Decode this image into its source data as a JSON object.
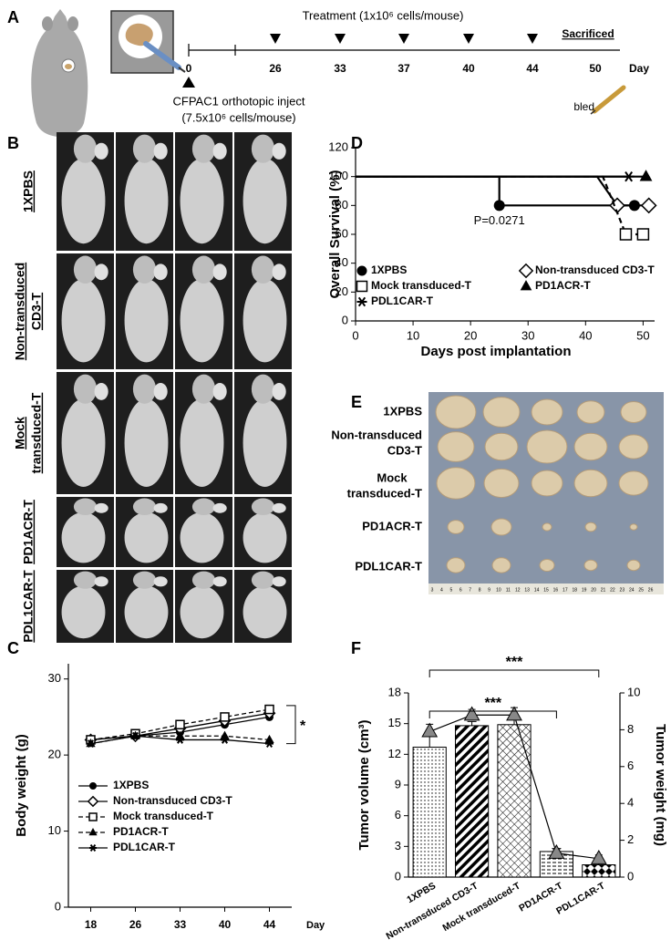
{
  "panel_a": {
    "label": "A",
    "treatment": "Treatment  (1x10⁶ cells/mouse)",
    "days": [
      0,
      26,
      33,
      37,
      40,
      44,
      50
    ],
    "day_label": "Day",
    "sacrificed": "Sacrificed",
    "inject": [
      "CFPAC1 orthotopic inject",
      "(7.5x10⁶ cells/mouse)"
    ],
    "bled": "bled"
  },
  "panel_b": {
    "label": "B",
    "rows": [
      [
        "1XPBS"
      ],
      [
        "Non-transduced",
        "CD3-T"
      ],
      [
        "Mock",
        "transduced-T"
      ],
      [
        "PD1ACR-T"
      ],
      [
        "PDL1CAR-T"
      ]
    ]
  },
  "panel_e": {
    "label": "E",
    "rows": [
      [
        "1XPBS"
      ],
      [
        "Non-transduced",
        "CD3-T"
      ],
      [
        "Mock",
        "transduced-T"
      ],
      [
        "PD1ACR-T"
      ],
      [
        "PDL1CAR-T"
      ]
    ],
    "ruler": [
      3,
      4,
      5,
      6,
      7,
      8,
      9,
      10,
      11,
      12,
      13,
      14,
      15,
      16,
      17,
      18,
      19,
      20,
      21,
      22,
      23,
      24,
      25,
      26
    ]
  },
  "chart_data": [
    {
      "label": "C",
      "type": "line",
      "y_label": "Body weight (g)",
      "x_label": "Day",
      "categories": [
        "18",
        "26",
        "33",
        "40",
        "44"
      ],
      "ylim": [
        0,
        32
      ],
      "yticks": [
        0,
        10,
        20,
        30
      ],
      "annotation": "*",
      "series": [
        {
          "name": "1XPBS",
          "color": "#000000",
          "marker": "circle",
          "dash": false,
          "values": [
            22,
            22.5,
            23,
            24,
            25
          ]
        },
        {
          "name": "Non-transduced  CD3-T",
          "color": "#000000",
          "marker": "diamond-open",
          "dash": false,
          "values": [
            22,
            22.5,
            23.5,
            24.5,
            25.5
          ]
        },
        {
          "name": "Mock transduced-T",
          "color": "#000000",
          "marker": "square-open",
          "dash": true,
          "values": [
            22,
            22.8,
            24,
            25,
            26
          ]
        },
        {
          "name": "PD1ACR-T",
          "color": "#000000",
          "marker": "triangle",
          "dash": true,
          "values": [
            21.5,
            22.5,
            22.5,
            22.5,
            22
          ]
        },
        {
          "name": "PDL1CAR-T",
          "color": "#000000",
          "marker": "asterisk",
          "dash": false,
          "values": [
            21.5,
            22.5,
            22,
            22,
            21.5
          ]
        }
      ]
    },
    {
      "label": "D",
      "type": "survival",
      "y_label": "Overall Survival (%)",
      "x_label": "Days post implantation",
      "xlim": [
        0,
        52
      ],
      "xticks": [
        0,
        10,
        20,
        30,
        40,
        50
      ],
      "ylim": [
        0,
        120
      ],
      "yticks": [
        0,
        20,
        40,
        60,
        80,
        100,
        120
      ],
      "annotation": "P=0.0271",
      "series": [
        {
          "name": "1XPBS",
          "color": "#000000",
          "marker": "circle",
          "dash": false,
          "x": [
            0,
            25,
            25,
            48.5
          ],
          "values": [
            100,
            100,
            80,
            80
          ]
        },
        {
          "name": "Non-transduced  CD3-T",
          "color": "#000000",
          "marker": "diamond-open",
          "dash": false,
          "x": [
            0,
            42,
            45.5,
            51
          ],
          "values": [
            100,
            100,
            80,
            80
          ]
        },
        {
          "name": "Mock transduced-T",
          "color": "#000000",
          "marker": "square-open",
          "dash": true,
          "x": [
            0,
            43,
            47,
            50
          ],
          "values": [
            100,
            100,
            60,
            60
          ]
        },
        {
          "name": "PD1ACR-T",
          "color": "#000000",
          "marker": "triangle",
          "dash": false,
          "x": [
            0,
            50.5
          ],
          "values": [
            100,
            100
          ]
        },
        {
          "name": "PDL1CAR-T",
          "color": "#000000",
          "marker": "asterisk",
          "dash": false,
          "x": [
            0,
            47.5
          ],
          "values": [
            100,
            100
          ]
        }
      ]
    },
    {
      "label": "F",
      "type": "bar-line",
      "y_label": "Tumor volume (cm³)",
      "y2_label": "Tumor weight (mg)",
      "categories": [
        "1XPBS",
        "Non-transduced  CD3-T",
        "Mock transduced-T",
        "PD1ACR-T",
        "PDL1CAR-T"
      ],
      "ylim": [
        0,
        18
      ],
      "yticks": [
        0,
        3,
        6,
        9,
        12,
        15,
        18
      ],
      "y2lim": [
        0,
        10
      ],
      "y2ticks": [
        0,
        2,
        4,
        6,
        8,
        10
      ],
      "significance": [
        "***",
        "***"
      ],
      "bars": {
        "color": "#000000",
        "patterns": [
          "dots",
          "diagonal",
          "crosshatch",
          "hlines",
          "diamonds"
        ],
        "values": [
          12.7,
          14.8,
          14.9,
          2.5,
          1.2
        ],
        "errors": [
          1.2,
          0.4,
          0.5,
          0.3,
          0.2
        ]
      },
      "line": {
        "axis": "y2",
        "color": "#888888",
        "values": [
          7.9,
          8.8,
          8.8,
          1.3,
          1.0
        ],
        "errors": [
          0.4,
          0.3,
          0.4,
          0.2,
          0.2
        ]
      }
    }
  ]
}
